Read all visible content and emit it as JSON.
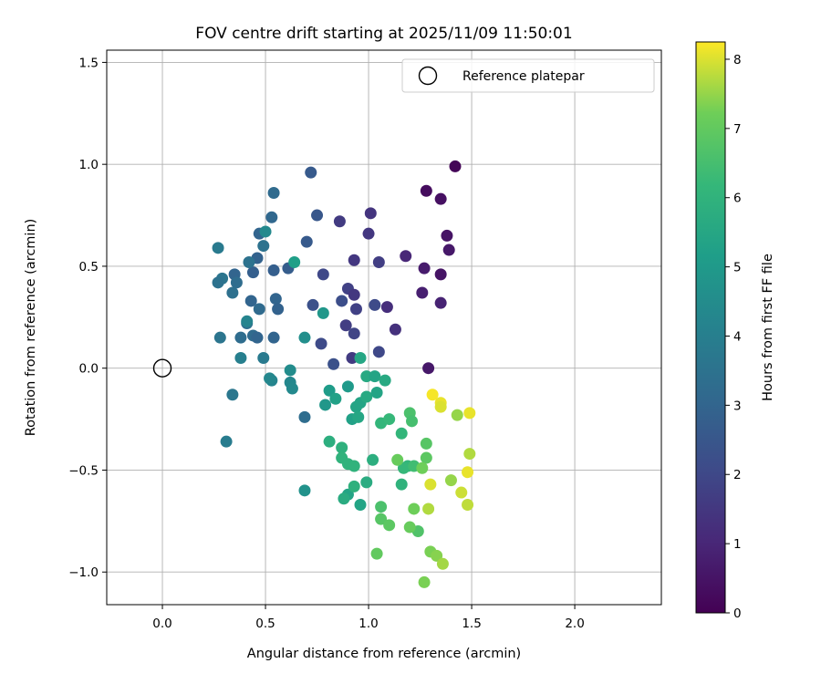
{
  "chart_data": {
    "type": "scatter",
    "title": "FOV centre drift starting at 2025/11/09 11:50:01",
    "xlabel": "Angular distance from reference (arcmin)",
    "ylabel": "Rotation from reference (arcmin)",
    "xlim": [
      -0.27,
      2.42
    ],
    "ylim": [
      -1.16,
      1.56
    ],
    "xticks": [
      0.0,
      0.5,
      1.0,
      1.5,
      2.0
    ],
    "xtick_labels": [
      "0.0",
      "0.5",
      "1.0",
      "1.5",
      "2.0"
    ],
    "yticks": [
      -1.0,
      -0.5,
      0.0,
      0.5,
      1.0,
      1.5
    ],
    "ytick_labels": [
      "−1.0",
      "−0.5",
      "0.0",
      "0.5",
      "1.0",
      "1.5"
    ],
    "grid": true,
    "legend": {
      "position": "top-right",
      "entries": [
        "Reference platepar"
      ]
    },
    "reference_point": {
      "x": 0.0,
      "y": 0.0
    },
    "colorbar": {
      "label": "Hours from first FF file",
      "min": 0,
      "max": 8.25,
      "ticks": [
        0,
        1,
        2,
        3,
        4,
        5,
        6,
        7,
        8
      ],
      "tick_labels": [
        "0",
        "1",
        "2",
        "3",
        "4",
        "5",
        "6",
        "7",
        "8"
      ],
      "colormap": "viridis"
    },
    "points": [
      [
        1.42,
        0.99,
        0.1
      ],
      [
        1.28,
        0.87,
        0.3
      ],
      [
        1.35,
        0.83,
        0.4
      ],
      [
        1.38,
        0.65,
        0.5
      ],
      [
        1.39,
        0.58,
        0.6
      ],
      [
        1.27,
        0.49,
        0.7
      ],
      [
        1.35,
        0.46,
        0.5
      ],
      [
        1.26,
        0.37,
        0.8
      ],
      [
        1.35,
        0.32,
        0.9
      ],
      [
        1.29,
        0.0,
        0.6
      ],
      [
        1.18,
        0.55,
        1.0
      ],
      [
        1.09,
        0.3,
        1.2
      ],
      [
        1.13,
        0.19,
        1.3
      ],
      [
        1.01,
        0.76,
        1.4
      ],
      [
        1.0,
        0.66,
        1.5
      ],
      [
        0.86,
        0.72,
        1.6
      ],
      [
        0.93,
        0.53,
        1.5
      ],
      [
        1.05,
        0.52,
        1.7
      ],
      [
        0.9,
        0.39,
        1.8
      ],
      [
        0.93,
        0.36,
        1.5
      ],
      [
        0.89,
        0.21,
        1.7
      ],
      [
        0.94,
        0.29,
        1.8
      ],
      [
        0.93,
        0.17,
        1.9
      ],
      [
        0.92,
        0.05,
        1.6
      ],
      [
        1.05,
        0.08,
        2.0
      ],
      [
        1.03,
        0.31,
        2.1
      ],
      [
        0.87,
        0.33,
        2.2
      ],
      [
        0.83,
        0.02,
        2.3
      ],
      [
        0.77,
        0.12,
        2.1
      ],
      [
        0.78,
        0.46,
        2.0
      ],
      [
        0.73,
        0.31,
        2.3
      ],
      [
        0.7,
        0.62,
        2.6
      ],
      [
        0.75,
        0.75,
        2.5
      ],
      [
        0.72,
        0.96,
        2.6
      ],
      [
        0.61,
        0.49,
        2.7
      ],
      [
        0.55,
        0.34,
        3.0
      ],
      [
        0.53,
        0.74,
        3.1
      ],
      [
        0.54,
        0.48,
        2.8
      ],
      [
        0.56,
        0.29,
        2.9
      ],
      [
        0.54,
        0.15,
        3.0
      ],
      [
        0.54,
        0.86,
        3.2
      ],
      [
        0.46,
        0.54,
        2.9
      ],
      [
        0.47,
        0.66,
        3.0
      ],
      [
        0.44,
        0.47,
        2.8
      ],
      [
        0.43,
        0.33,
        3.0
      ],
      [
        0.47,
        0.29,
        3.2
      ],
      [
        0.41,
        0.22,
        3.4
      ],
      [
        0.44,
        0.16,
        3.2
      ],
      [
        0.46,
        0.15,
        3.0
      ],
      [
        0.38,
        0.15,
        3.3
      ],
      [
        0.35,
        0.46,
        3.0
      ],
      [
        0.36,
        0.42,
        3.3
      ],
      [
        0.34,
        0.37,
        3.4
      ],
      [
        0.29,
        0.44,
        3.6
      ],
      [
        0.27,
        0.42,
        3.5
      ],
      [
        0.27,
        0.59,
        3.8
      ],
      [
        0.28,
        0.15,
        3.6
      ],
      [
        0.42,
        0.52,
        3.5
      ],
      [
        0.49,
        0.6,
        3.5
      ],
      [
        0.49,
        0.05,
        3.8
      ],
      [
        0.38,
        0.05,
        4.0
      ],
      [
        0.34,
        -0.13,
        3.7
      ],
      [
        0.31,
        -0.36,
        3.9
      ],
      [
        0.69,
        -0.24,
        3.3
      ],
      [
        0.53,
        -0.06,
        4.2
      ],
      [
        0.52,
        -0.05,
        4.3
      ],
      [
        0.62,
        -0.07,
        4.3
      ],
      [
        0.63,
        -0.1,
        4.4
      ],
      [
        0.62,
        -0.01,
        4.5
      ],
      [
        0.41,
        0.23,
        4.2
      ],
      [
        0.5,
        0.67,
        4.4
      ],
      [
        0.69,
        0.15,
        4.6
      ],
      [
        0.78,
        0.27,
        4.9
      ],
      [
        0.69,
        -0.6,
        4.7
      ],
      [
        0.64,
        0.52,
        5.2
      ],
      [
        0.79,
        -0.18,
        4.9
      ],
      [
        0.81,
        -0.11,
        5.1
      ],
      [
        0.84,
        -0.15,
        5.3
      ],
      [
        0.9,
        -0.09,
        5.0
      ],
      [
        0.92,
        -0.25,
        5.3
      ],
      [
        0.94,
        -0.19,
        5.4
      ],
      [
        0.95,
        -0.24,
        5.5
      ],
      [
        0.96,
        -0.17,
        5.4
      ],
      [
        0.99,
        -0.14,
        5.6
      ],
      [
        0.96,
        0.05,
        5.5
      ],
      [
        0.99,
        -0.04,
        5.6
      ],
      [
        1.03,
        -0.04,
        5.4
      ],
      [
        1.04,
        -0.12,
        5.4
      ],
      [
        1.08,
        -0.06,
        5.6
      ],
      [
        0.81,
        -0.36,
        5.8
      ],
      [
        0.87,
        -0.39,
        5.9
      ],
      [
        0.87,
        -0.44,
        6.0
      ],
      [
        0.9,
        -0.47,
        6.0
      ],
      [
        0.93,
        -0.48,
        6.0
      ],
      [
        0.9,
        -0.62,
        5.4
      ],
      [
        0.88,
        -0.64,
        5.7
      ],
      [
        0.93,
        -0.58,
        5.9
      ],
      [
        0.96,
        -0.67,
        5.4
      ],
      [
        0.99,
        -0.56,
        5.7
      ],
      [
        1.02,
        -0.45,
        5.8
      ],
      [
        1.06,
        -0.27,
        6.1
      ],
      [
        1.1,
        -0.25,
        6.2
      ],
      [
        1.16,
        -0.32,
        6.1
      ],
      [
        1.16,
        -0.57,
        6.0
      ],
      [
        1.19,
        -0.48,
        6.1
      ],
      [
        1.17,
        -0.49,
        6.2
      ],
      [
        1.22,
        -0.48,
        6.4
      ],
      [
        1.2,
        -0.22,
        6.6
      ],
      [
        1.21,
        -0.26,
        6.5
      ],
      [
        1.28,
        -0.37,
        6.8
      ],
      [
        1.28,
        -0.44,
        6.9
      ],
      [
        1.26,
        -0.49,
        7.2
      ],
      [
        1.14,
        -0.45,
        7.1
      ],
      [
        1.06,
        -0.68,
        6.6
      ],
      [
        1.06,
        -0.74,
        6.8
      ],
      [
        1.1,
        -0.77,
        6.9
      ],
      [
        1.22,
        -0.69,
        7.2
      ],
      [
        1.24,
        -0.8,
        6.7
      ],
      [
        1.2,
        -0.78,
        7.1
      ],
      [
        1.04,
        -0.91,
        7.0
      ],
      [
        1.29,
        -0.69,
        7.7
      ],
      [
        1.27,
        -1.05,
        7.3
      ],
      [
        1.3,
        -0.9,
        7.3
      ],
      [
        1.33,
        -0.92,
        7.4
      ],
      [
        1.36,
        -0.96,
        7.6
      ],
      [
        1.4,
        -0.55,
        7.5
      ],
      [
        1.45,
        -0.61,
        7.9
      ],
      [
        1.48,
        -0.67,
        7.8
      ],
      [
        1.49,
        -0.42,
        7.7
      ],
      [
        1.43,
        -0.23,
        7.5
      ],
      [
        1.48,
        -0.51,
        8.1
      ],
      [
        1.49,
        -0.22,
        8.1
      ],
      [
        1.3,
        -0.57,
        8.0
      ],
      [
        1.31,
        -0.13,
        8.2
      ],
      [
        1.35,
        -0.17,
        8.1
      ],
      [
        1.35,
        -0.19,
        8.0
      ]
    ]
  }
}
